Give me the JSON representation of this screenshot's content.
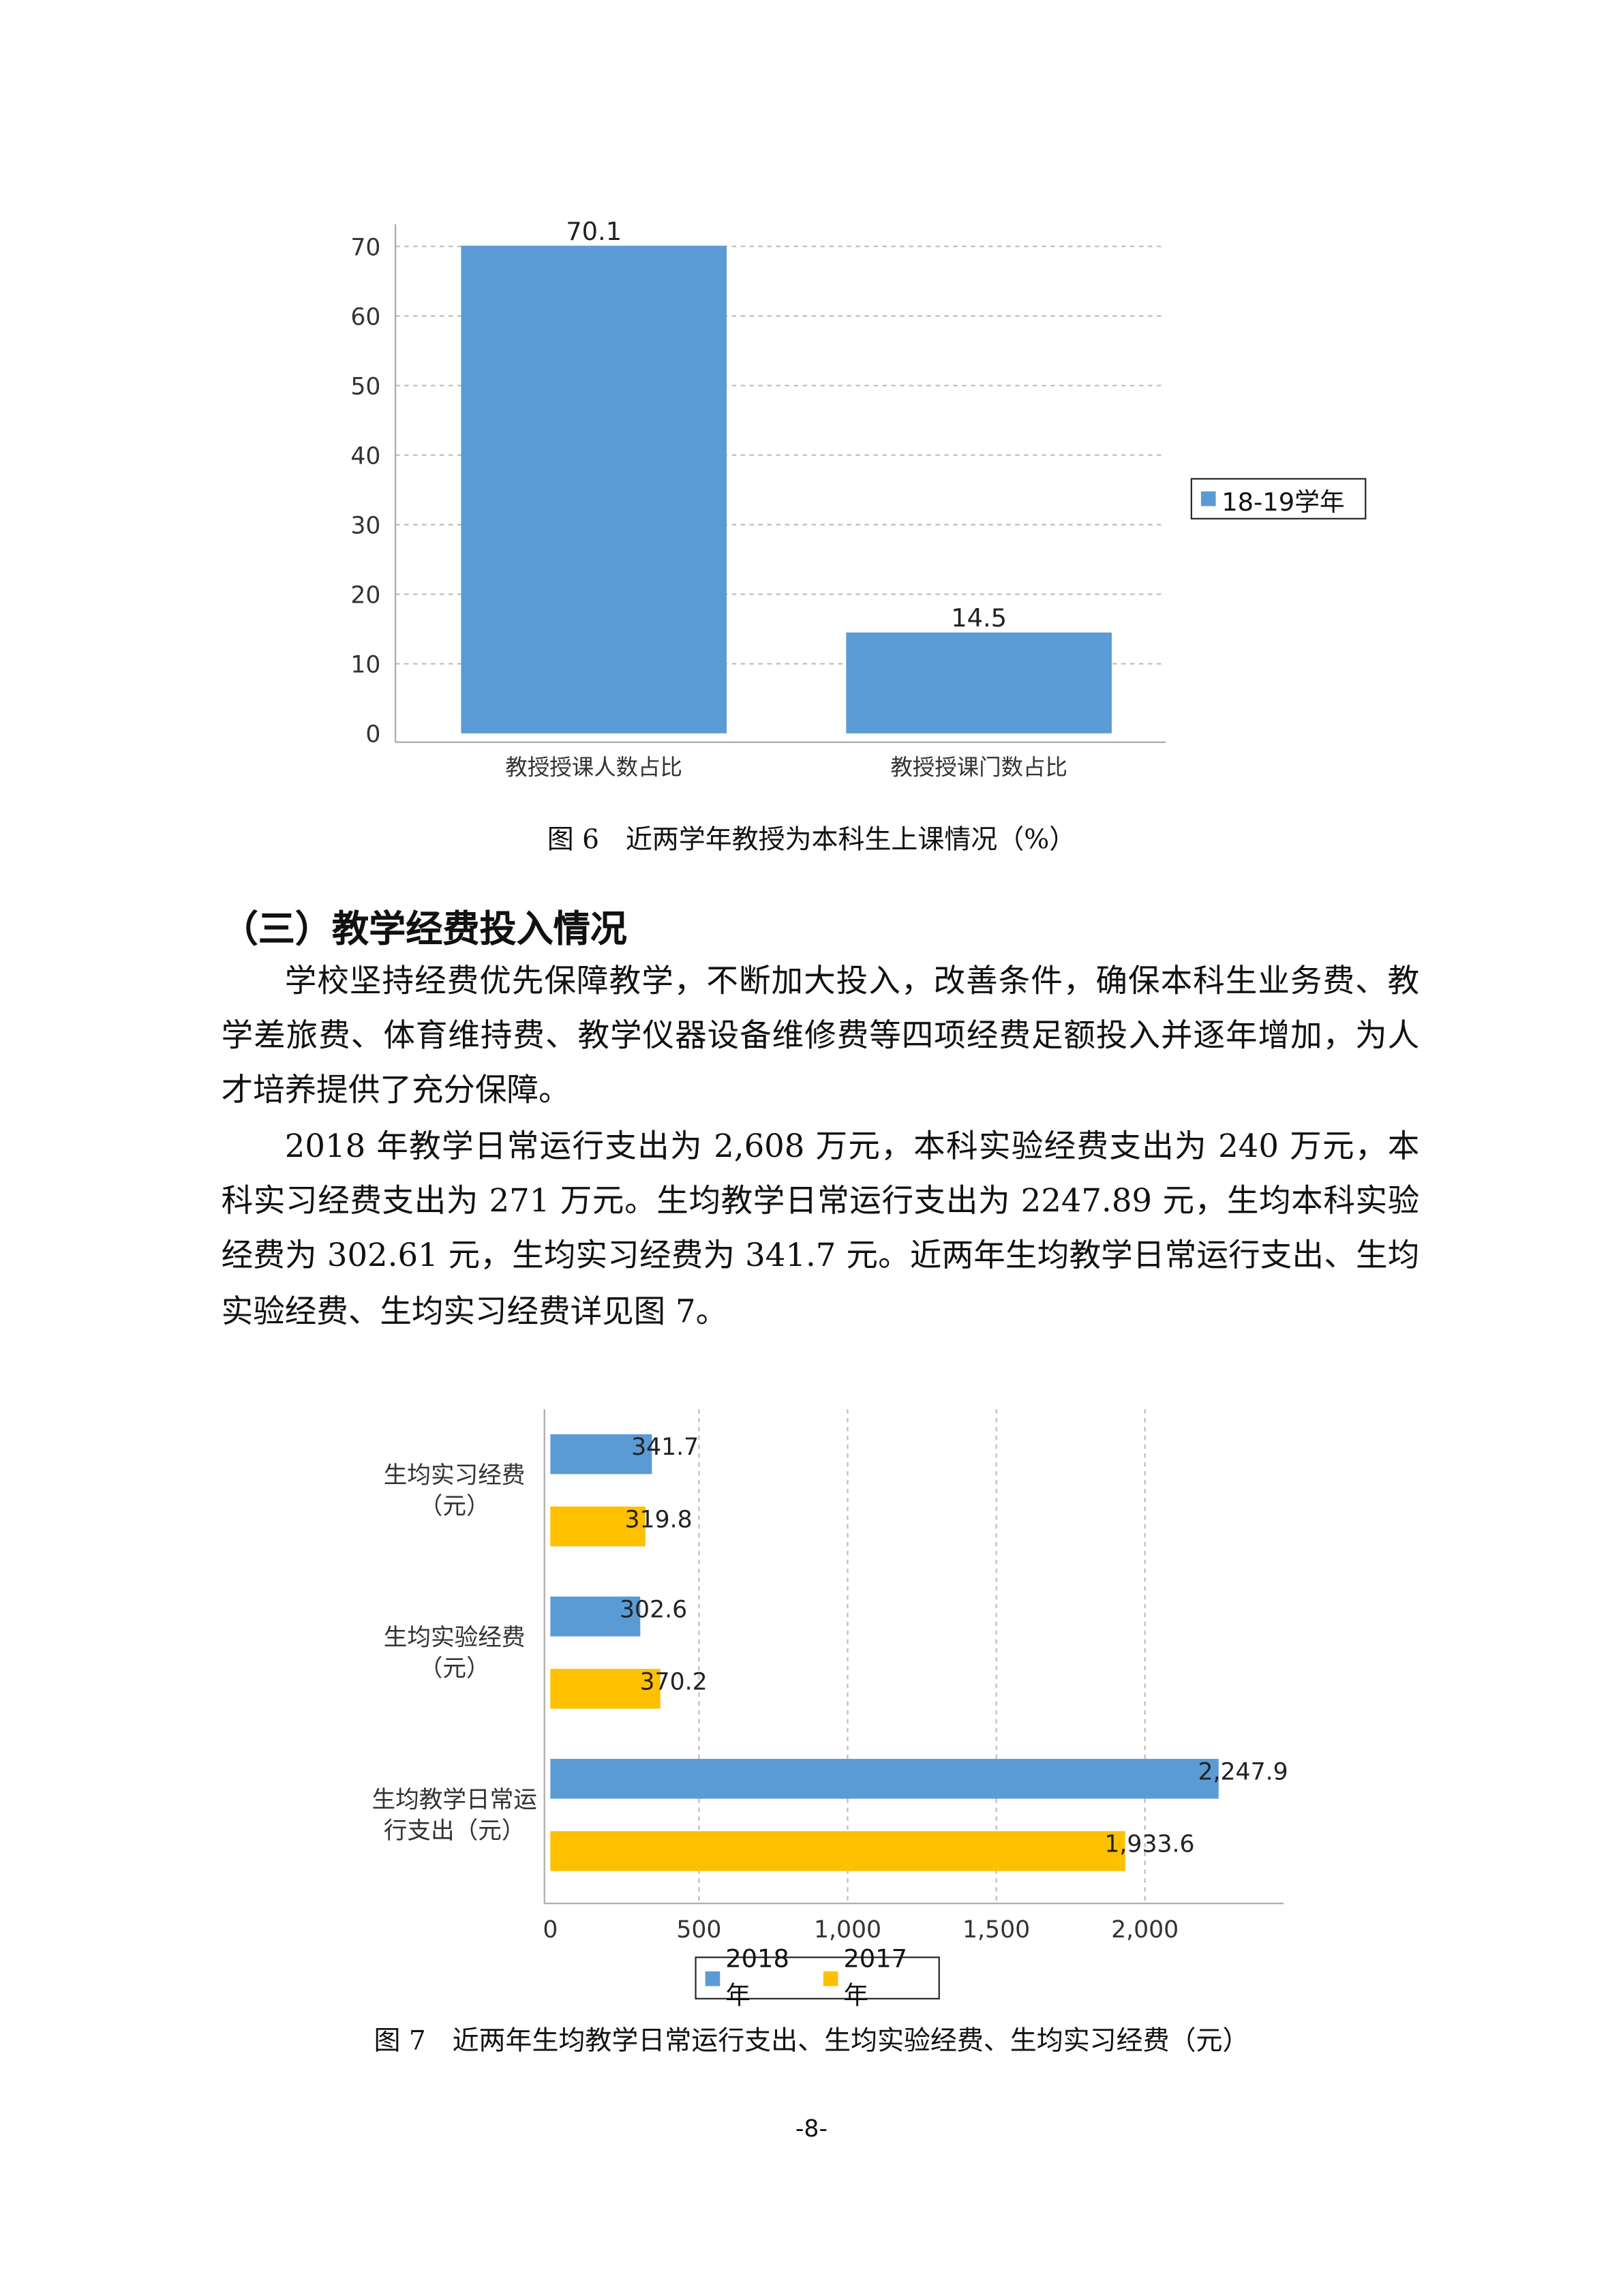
{
  "chart_data": [
    {
      "type": "bar",
      "orientation": "vertical",
      "categories": [
        "教授授课人数占比",
        "教授授课门数占比"
      ],
      "series": [
        {
          "name": "18-19学年",
          "values": [
            70.1,
            14.5
          ]
        }
      ],
      "data_labels": [
        "70.1",
        "14.5"
      ],
      "yticks": [
        "0",
        "10",
        "20",
        "30",
        "40",
        "50",
        "60",
        "70"
      ],
      "ylim": [
        0,
        70
      ],
      "grid": true,
      "legend_position": "right",
      "colors": {
        "18-19学年": "#5b9bd5"
      },
      "caption": "图 6　近两学年教授为本科生上课情况（%）"
    },
    {
      "type": "bar",
      "orientation": "horizontal",
      "categories": [
        "生均实习经费（元）",
        "生均实验经费（元）",
        "生均教学日常运行支出（元）"
      ],
      "category_lines": [
        [
          "生均实习经费",
          "（元）"
        ],
        [
          "生均实验经费",
          "（元）"
        ],
        [
          "生均教学日常运",
          "行支出（元）"
        ]
      ],
      "series": [
        {
          "name": "2018年",
          "values": [
            341.7,
            302.6,
            2247.9
          ],
          "labels": [
            "341.7",
            "302.6",
            "2,247.9"
          ]
        },
        {
          "name": "2017年",
          "values": [
            319.8,
            370.2,
            1933.6
          ],
          "labels": [
            "319.8",
            "370.2",
            "1,933.6"
          ]
        }
      ],
      "xticks": [
        "0",
        "500",
        "1,000",
        "1,500",
        "2,000"
      ],
      "xlim": [
        0,
        2480
      ],
      "grid": true,
      "legend_position": "bottom",
      "colors": {
        "2018年": "#5b9bd5",
        "2017年": "#ffc000"
      },
      "caption": "图 7　近两年生均教学日常运行支出、生均实验经费、生均实习经费（元）"
    }
  ],
  "section": {
    "heading": "（三）教学经费投入情况",
    "paragraphs": [
      "学校坚持经费优先保障教学，不断加大投入，改善条件，确保本科生业务费、教学差旅费、体育维持费、教学仪器设备维修费等四项经费足额投入并逐年增加，为人才培养提供了充分保障。",
      "2018 年教学日常运行支出为 2,608 万元，本科实验经费支出为 240 万元，本科实习经费支出为 271 万元。生均教学日常运行支出为 2247.89 元，生均本科实验经费为 302.61 元，生均实习经费为 341.7 元。近两年生均教学日常运行支出、生均实验经费、生均实习经费详见图 7。"
    ]
  },
  "page_number": "-8-"
}
